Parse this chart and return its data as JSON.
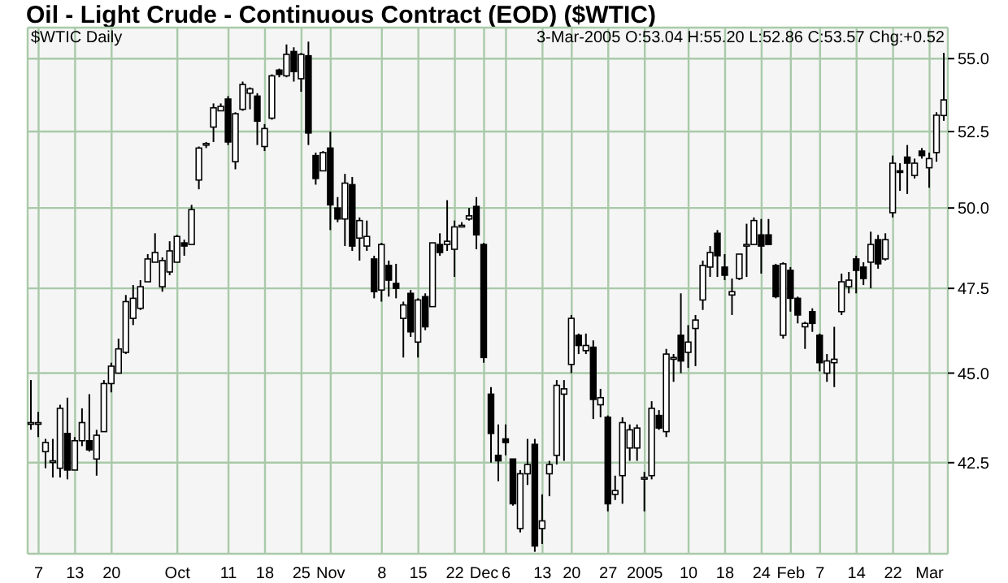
{
  "chart_data": {
    "type": "candlestick",
    "title": "Oil - Light Crude - Continuous Contract (EOD) ($WTIC)",
    "annotations": [
      "$WTIC Daily",
      "3-Mar-2005 O:53.04 H:55.20 L:52.86 C:53.57 Chg:+0.52"
    ],
    "categories": [
      null,
      "7",
      null,
      null,
      null,
      null,
      "13",
      null,
      null,
      null,
      null,
      "20",
      null,
      null,
      null,
      null,
      null,
      null,
      null,
      null,
      "Oct",
      null,
      null,
      null,
      null,
      null,
      null,
      "11",
      null,
      null,
      null,
      null,
      "18",
      null,
      null,
      null,
      null,
      "25",
      null,
      null,
      null,
      "Nov",
      null,
      null,
      null,
      null,
      null,
      null,
      "8",
      null,
      null,
      null,
      null,
      "15",
      null,
      null,
      null,
      null,
      "22",
      null,
      null,
      null,
      "Dec",
      null,
      null,
      "6",
      null,
      null,
      null,
      null,
      "13",
      null,
      null,
      null,
      "20",
      null,
      null,
      null,
      null,
      "27",
      null,
      null,
      null,
      null,
      "2005",
      null,
      null,
      null,
      null,
      null,
      "10",
      null,
      null,
      null,
      null,
      "18",
      null,
      null,
      null,
      null,
      "24",
      null,
      null,
      null,
      "Feb",
      null,
      null,
      null,
      "7",
      null,
      null,
      null,
      null,
      "14",
      null,
      null,
      null,
      null,
      "22",
      null,
      null,
      null,
      null,
      "Mar",
      null,
      null
    ],
    "ohlc": [
      [
        43.6,
        44.8,
        43.4,
        43.6
      ],
      [
        43.6,
        43.9,
        43.2,
        43.6
      ],
      [
        42.8,
        43.15,
        42.35,
        43.05
      ],
      [
        42.55,
        43.15,
        42.1,
        42.55
      ],
      [
        42.35,
        44.1,
        42.1,
        44.0
      ],
      [
        43.3,
        44.3,
        42.05,
        42.3
      ],
      [
        42.3,
        43.2,
        42.3,
        43.1
      ],
      [
        43.1,
        44.0,
        42.95,
        43.6
      ],
      [
        43.1,
        44.4,
        42.8,
        42.85
      ],
      [
        42.6,
        43.4,
        42.15,
        43.25
      ],
      [
        43.35,
        44.8,
        43.35,
        44.7
      ],
      [
        44.7,
        45.3,
        44.45,
        45.2
      ],
      [
        45.0,
        46.0,
        45.0,
        45.7
      ],
      [
        45.6,
        47.3,
        45.55,
        47.1
      ],
      [
        46.6,
        47.6,
        46.4,
        47.2
      ],
      [
        46.9,
        47.75,
        46.85,
        47.55
      ],
      [
        47.7,
        48.55,
        47.7,
        48.4
      ],
      [
        48.3,
        49.2,
        48.3,
        48.6
      ],
      [
        47.55,
        48.45,
        47.4,
        48.35
      ],
      [
        48.0,
        48.95,
        47.9,
        48.65
      ],
      [
        48.3,
        49.15,
        48.3,
        49.1
      ],
      [
        48.9,
        49.0,
        48.5,
        48.8
      ],
      [
        48.85,
        50.1,
        48.85,
        49.95
      ],
      [
        50.9,
        52.0,
        50.6,
        51.95
      ],
      [
        52.1,
        52.15,
        51.95,
        52.1
      ],
      [
        52.65,
        53.45,
        52.15,
        53.3
      ],
      [
        53.2,
        53.45,
        53.2,
        53.35
      ],
      [
        53.6,
        53.7,
        52.05,
        52.15
      ],
      [
        51.5,
        53.15,
        51.25,
        53.1
      ],
      [
        53.25,
        54.2,
        53.2,
        54.1
      ],
      [
        53.8,
        54.0,
        53.25,
        53.95
      ],
      [
        53.7,
        53.8,
        52.05,
        52.85
      ],
      [
        52.0,
        52.75,
        51.85,
        52.6
      ],
      [
        52.95,
        54.45,
        52.9,
        54.4
      ],
      [
        54.6,
        54.65,
        54.35,
        54.45
      ],
      [
        54.4,
        55.5,
        54.35,
        55.15
      ],
      [
        55.25,
        55.4,
        54.2,
        54.55
      ],
      [
        54.3,
        55.2,
        53.85,
        55.15
      ],
      [
        55.1,
        55.6,
        52.05,
        52.45
      ],
      [
        51.7,
        51.8,
        50.75,
        50.95
      ],
      [
        51.2,
        51.85,
        51.2,
        51.8
      ],
      [
        51.95,
        52.5,
        49.3,
        50.1
      ],
      [
        50.0,
        50.35,
        49.55,
        49.65
      ],
      [
        49.65,
        51.1,
        48.8,
        50.8
      ],
      [
        50.75,
        51.0,
        48.65,
        48.8
      ],
      [
        49.05,
        49.7,
        48.35,
        49.6
      ],
      [
        48.8,
        49.6,
        48.65,
        49.1
      ],
      [
        48.4,
        48.5,
        47.2,
        47.4
      ],
      [
        47.45,
        48.9,
        47.1,
        48.85
      ],
      [
        48.2,
        48.35,
        47.25,
        47.75
      ],
      [
        47.65,
        48.25,
        47.2,
        47.5
      ],
      [
        46.6,
        47.1,
        45.45,
        47.0
      ],
      [
        47.35,
        47.45,
        46.05,
        46.2
      ],
      [
        45.9,
        47.2,
        45.45,
        47.15
      ],
      [
        47.25,
        47.35,
        46.25,
        46.35
      ],
      [
        46.95,
        48.9,
        46.95,
        48.9
      ],
      [
        48.85,
        49.2,
        48.5,
        48.6
      ],
      [
        48.85,
        50.25,
        48.65,
        48.95
      ],
      [
        48.7,
        49.6,
        47.85,
        49.4
      ],
      [
        49.45,
        49.55,
        49.4,
        49.45
      ],
      [
        49.65,
        50.0,
        49.6,
        49.75
      ],
      [
        50.05,
        50.35,
        48.7,
        49.15
      ],
      [
        48.85,
        48.9,
        45.3,
        45.45
      ],
      [
        44.4,
        44.6,
        42.5,
        43.3
      ],
      [
        42.7,
        43.55,
        42.0,
        42.55
      ],
      [
        43.15,
        43.55,
        42.7,
        43.05
      ],
      [
        42.6,
        42.6,
        41.35,
        41.4
      ],
      [
        40.75,
        42.3,
        40.65,
        42.2
      ],
      [
        42.2,
        43.15,
        41.9,
        42.45
      ],
      [
        43.0,
        43.15,
        40.15,
        40.3
      ],
      [
        40.75,
        41.65,
        40.35,
        40.95
      ],
      [
        42.2,
        42.55,
        41.6,
        42.45
      ],
      [
        42.7,
        44.8,
        42.45,
        44.65
      ],
      [
        44.4,
        44.8,
        42.55,
        44.55
      ],
      [
        45.25,
        46.7,
        45.0,
        46.6
      ],
      [
        46.1,
        46.15,
        45.55,
        45.8
      ],
      [
        45.65,
        46.15,
        45.55,
        45.8
      ],
      [
        45.75,
        45.95,
        43.7,
        44.25
      ],
      [
        44.1,
        44.55,
        43.75,
        44.3
      ],
      [
        43.75,
        43.8,
        41.2,
        41.4
      ],
      [
        41.65,
        42.15,
        41.5,
        41.75
      ],
      [
        42.15,
        43.75,
        41.4,
        43.6
      ],
      [
        42.9,
        43.55,
        42.55,
        43.4
      ],
      [
        42.9,
        43.55,
        42.55,
        43.45
      ],
      [
        42.1,
        42.25,
        41.2,
        42.1
      ],
      [
        42.15,
        44.2,
        42.05,
        44.0
      ],
      [
        43.8,
        43.95,
        43.4,
        43.45
      ],
      [
        43.35,
        45.7,
        43.2,
        45.55
      ],
      [
        45.4,
        45.55,
        44.75,
        45.45
      ],
      [
        46.1,
        47.35,
        45.0,
        45.35
      ],
      [
        45.6,
        46.4,
        45.15,
        45.9
      ],
      [
        46.3,
        46.7,
        45.2,
        46.55
      ],
      [
        47.15,
        48.35,
        46.85,
        48.2
      ],
      [
        48.15,
        48.8,
        47.85,
        48.6
      ],
      [
        49.2,
        49.3,
        47.85,
        48.5
      ],
      [
        48.15,
        48.55,
        47.75,
        47.9
      ],
      [
        47.3,
        47.8,
        46.7,
        47.4
      ],
      [
        47.8,
        48.55,
        47.75,
        48.55
      ],
      [
        48.8,
        49.5,
        47.85,
        48.85
      ],
      [
        48.85,
        49.7,
        48.85,
        49.6
      ],
      [
        49.15,
        49.65,
        47.95,
        48.8
      ],
      [
        49.15,
        49.65,
        48.85,
        48.85
      ],
      [
        48.2,
        48.25,
        47.2,
        47.25
      ],
      [
        46.1,
        48.3,
        46.0,
        48.25
      ],
      [
        48.05,
        48.15,
        46.8,
        47.2
      ],
      [
        47.2,
        47.25,
        46.45,
        46.7
      ],
      [
        46.35,
        46.5,
        45.7,
        46.45
      ],
      [
        46.8,
        46.9,
        46.2,
        46.45
      ],
      [
        46.1,
        46.15,
        45.05,
        45.3
      ],
      [
        45.0,
        45.55,
        44.75,
        45.35
      ],
      [
        45.3,
        46.35,
        44.6,
        45.4
      ],
      [
        46.8,
        47.95,
        46.7,
        47.7
      ],
      [
        47.55,
        48.0,
        47.35,
        47.75
      ],
      [
        48.4,
        48.5,
        47.35,
        48.05
      ],
      [
        48.15,
        48.3,
        47.6,
        47.8
      ],
      [
        48.3,
        49.25,
        47.5,
        48.85
      ],
      [
        49.0,
        49.15,
        48.1,
        48.25
      ],
      [
        48.4,
        49.2,
        48.35,
        49.0
      ],
      [
        49.85,
        51.7,
        49.7,
        51.45
      ],
      [
        51.2,
        51.45,
        50.55,
        51.15
      ],
      [
        51.65,
        52.05,
        50.45,
        51.45
      ],
      [
        51.05,
        51.6,
        50.95,
        51.45
      ],
      [
        51.85,
        51.95,
        51.6,
        51.7
      ],
      [
        51.3,
        51.8,
        50.65,
        51.6
      ],
      [
        51.8,
        53.15,
        51.5,
        53.05
      ],
      [
        53.04,
        55.2,
        52.86,
        53.57
      ]
    ],
    "color": "#000000",
    "log": true,
    "ylim": [
      40.1,
      56.1
    ],
    "yticks": [
      {
        "value": 42.5,
        "label": "42.5"
      },
      {
        "value": 45,
        "label": "45.0"
      },
      {
        "value": 47.5,
        "label": "47.5"
      },
      {
        "value": 50,
        "label": "50.0"
      },
      {
        "value": 52.5,
        "label": "52.5"
      },
      {
        "value": 55,
        "label": "55.0"
      }
    ],
    "grid": true
  }
}
